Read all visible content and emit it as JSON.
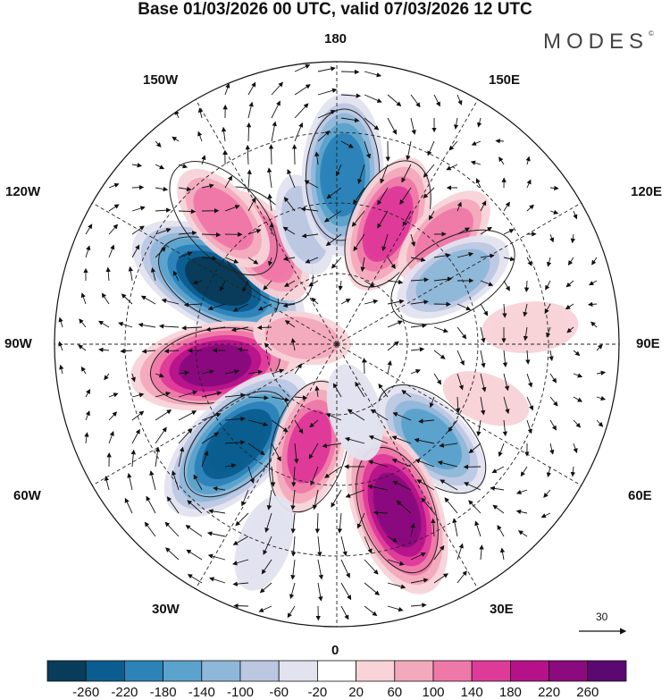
{
  "title": "Base 01/03/2026 00 UTC, valid 07/03/2026 12 UTC",
  "brand": "MODES",
  "brand_mark": "©",
  "lon_labels": {
    "top": "180",
    "top_left": "150W",
    "top_right": "150E",
    "upper_left": "120W",
    "upper_right": "120E",
    "left": "90W",
    "right": "90E",
    "lower_left": "60W",
    "lower_right": "60E",
    "bottom_left": "30W",
    "bottom_right": "30E",
    "bottom": "0"
  },
  "vector_scale_label": "30",
  "colorbar": {
    "colors": [
      "#083c5a",
      "#0b5d8f",
      "#2b83b8",
      "#5ba2cc",
      "#8fb7d9",
      "#bcc7e2",
      "#e2e3ef",
      "#ffffff",
      "#f8d3d8",
      "#f3a9bc",
      "#ee78a8",
      "#de3a9a",
      "#b5128a",
      "#8b0a7e",
      "#5b0870"
    ],
    "labels": [
      "-260",
      "-220",
      "-180",
      "-140",
      "-100",
      "-60",
      "-20",
      "20",
      "60",
      "100",
      "140",
      "180",
      "220",
      "260"
    ]
  },
  "anomalies": [
    {
      "lon": -118,
      "lat": 52,
      "value": -270
    },
    {
      "lon": -80,
      "lat": 55,
      "value": 230
    },
    {
      "lon": -45,
      "lat": 50,
      "value": -260
    },
    {
      "lon": -143,
      "lat": 55,
      "value": 130
    },
    {
      "lon": -138,
      "lat": 42,
      "value": 110
    },
    {
      "lon": -165,
      "lat": 55,
      "value": -70
    },
    {
      "lon": 178,
      "lat": 42,
      "value": -210
    },
    {
      "lon": 157,
      "lat": 53,
      "value": 160
    },
    {
      "lon": 135,
      "lat": 47,
      "value": 100
    },
    {
      "lon": 120,
      "lat": 52,
      "value": -120
    },
    {
      "lon": 70,
      "lat": 45,
      "value": 40
    },
    {
      "lon": 95,
      "lat": 35,
      "value": 55
    },
    {
      "lon": 45,
      "lat": 52,
      "value": -150
    },
    {
      "lon": 20,
      "lat": 40,
      "value": 240
    },
    {
      "lon": -15,
      "lat": 60,
      "value": 150
    },
    {
      "lon": 15,
      "lat": 70,
      "value": -60
    },
    {
      "lon": -20,
      "lat": 30,
      "value": -60
    },
    {
      "lon": -100,
      "lat": 80,
      "value": 60
    }
  ]
}
